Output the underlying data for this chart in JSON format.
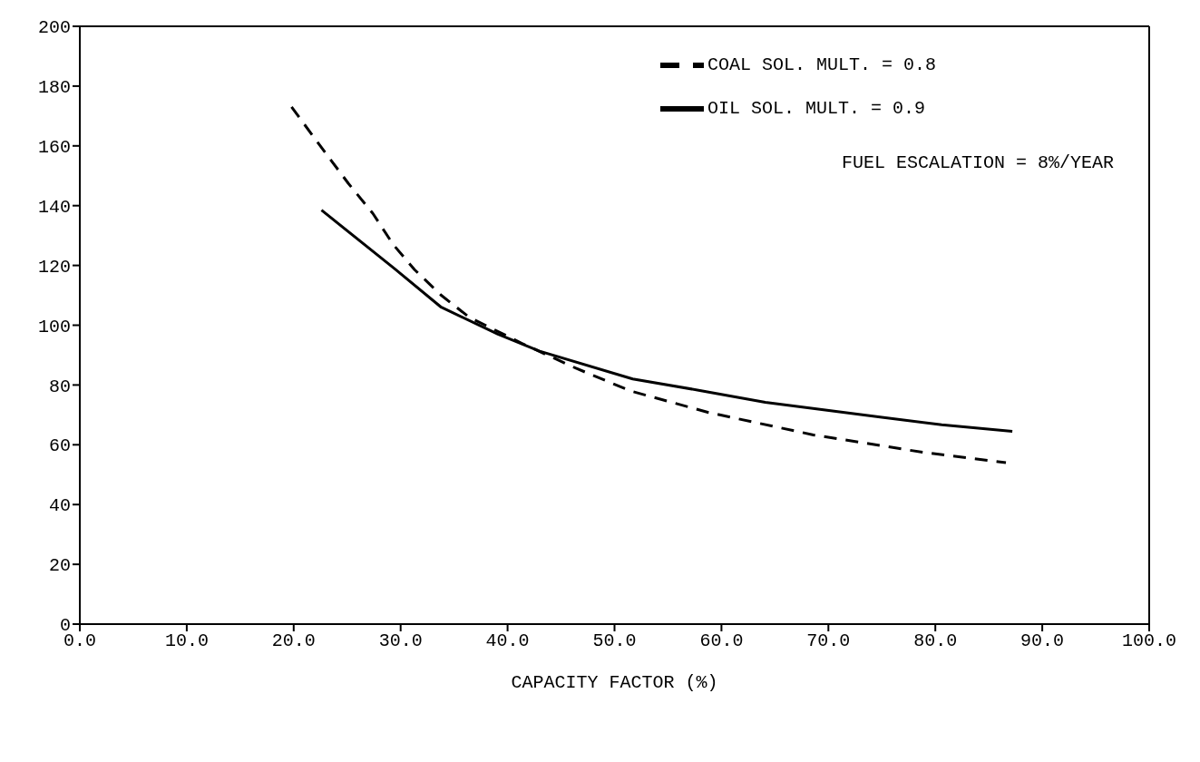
{
  "chart_data": {
    "type": "line",
    "xlabel": "CAPACITY FACTOR (%)",
    "xlim": [
      0,
      100
    ],
    "ylim": [
      0,
      200
    ],
    "xticks": [
      {
        "value": 0,
        "label": "0.0"
      },
      {
        "value": 10,
        "label": "10.0"
      },
      {
        "value": 20,
        "label": "20.0"
      },
      {
        "value": 30,
        "label": "30.0"
      },
      {
        "value": 40,
        "label": "40.0"
      },
      {
        "value": 50,
        "label": "50.0"
      },
      {
        "value": 60,
        "label": "60.0"
      },
      {
        "value": 70,
        "label": "70.0"
      },
      {
        "value": 80,
        "label": "80.0"
      },
      {
        "value": 90,
        "label": "90.0"
      },
      {
        "value": 100,
        "label": "100.0"
      }
    ],
    "yticks": [
      0,
      20,
      40,
      60,
      80,
      100,
      120,
      140,
      160,
      180,
      200
    ],
    "legend": "top right",
    "marker": "none",
    "annotations": [
      "FUEL ESCALATION = 8%/YEAR"
    ],
    "series": [
      {
        "name": "OIL SOL. MULT. = 0.9",
        "color": "#000000",
        "line_style": "solid",
        "x": [
          22.6,
          29.4,
          33.8,
          39.1,
          43,
          51.7,
          58.1,
          64.1,
          75,
          80.6,
          87.2
        ],
        "values": [
          138.5,
          119,
          106,
          97,
          91.3,
          82,
          78.1,
          74.2,
          69.2,
          66.7,
          64.5
        ]
      },
      {
        "name": "COAL SOL. MULT. = 0.8",
        "color": "#000000",
        "line_style": "dashed",
        "x": [
          19.8,
          22.9,
          25.1,
          27.4,
          29.3,
          31.3,
          33.8,
          36.4,
          41.3,
          46.4,
          51.5,
          58.8,
          68.6,
          78.8,
          86.6
        ],
        "values": [
          173,
          158,
          147.5,
          137.4,
          127,
          118.6,
          110,
          102.7,
          94,
          85.6,
          78,
          70.8,
          63.3,
          57.5,
          54
        ]
      }
    ]
  }
}
